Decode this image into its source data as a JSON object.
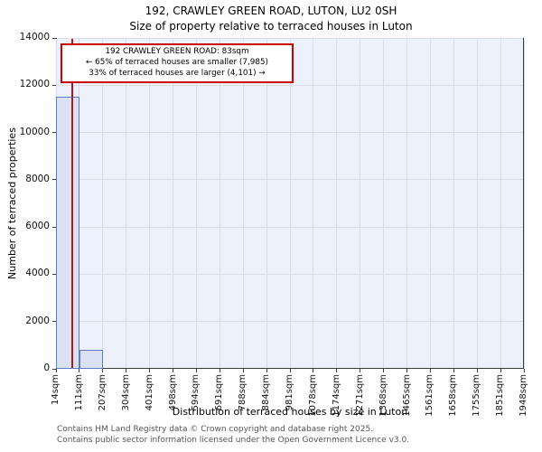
{
  "chart_data": {
    "type": "bar",
    "title": "192, CRAWLEY GREEN ROAD, LUTON, LU2 0SH",
    "subtitle": "Size of property relative to terraced houses in Luton",
    "xlabel": "Distribution of terraced houses by size in Luton",
    "ylabel": "Number of terraced properties",
    "x_tick_labels": [
      "14sqm",
      "111sqm",
      "207sqm",
      "304sqm",
      "401sqm",
      "498sqm",
      "594sqm",
      "691sqm",
      "788sqm",
      "884sqm",
      "981sqm",
      "1078sqm",
      "1174sqm",
      "1271sqm",
      "1368sqm",
      "1465sqm",
      "1561sqm",
      "1658sqm",
      "1755sqm",
      "1851sqm",
      "1948sqm"
    ],
    "bin_edges_sqm": [
      14,
      111,
      207,
      304,
      401,
      498,
      594,
      691,
      788,
      884,
      981,
      1078,
      1174,
      1271,
      1368,
      1465,
      1561,
      1658,
      1755,
      1851,
      1948
    ],
    "values": [
      11500,
      800,
      0,
      0,
      0,
      0,
      0,
      0,
      0,
      0,
      0,
      0,
      0,
      0,
      0,
      0,
      0,
      0,
      0,
      0
    ],
    "ylim": [
      0,
      14000
    ],
    "y_ticks": [
      0,
      2000,
      4000,
      6000,
      8000,
      10000,
      12000,
      14000
    ],
    "grid": true,
    "marker": {
      "value_sqm": 83,
      "color": "#b01818"
    },
    "annotation": {
      "line1": "192 CRAWLEY GREEN ROAD: 83sqm",
      "line2": "← 65% of terraced houses are smaller (7,985)",
      "line3": "33% of terraced houses are larger (4,101) →",
      "border_color": "#cc0000"
    },
    "colors": {
      "bar_fill": "#d9e1f2",
      "bar_edge": "#5c7ec0",
      "plot_bg": "#edf1fb",
      "grid_line": "#d7ddeb",
      "spine": "#3c3c3c"
    }
  },
  "footer": {
    "line1": "Contains HM Land Registry data © Crown copyright and database right 2025.",
    "line2": "Contains public sector information licensed under the Open Government Licence v3.0."
  }
}
